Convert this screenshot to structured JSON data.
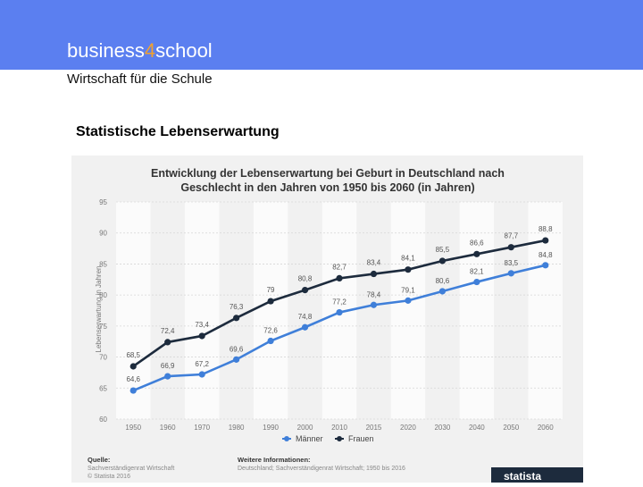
{
  "header": {
    "brand_prefix": "business",
    "brand_digit": "4",
    "brand_suffix": "school",
    "subtitle": "Wirtschaft für die Schule",
    "bg_color": "#5b7ff0",
    "accent_color": "#f2a12e"
  },
  "slide": {
    "title": "Statistische Lebenserwartung"
  },
  "chart_data": {
    "type": "line",
    "title_line1": "Entwicklung der Lebenserwartung bei Geburt in Deutschland nach",
    "title_line2": "Geschlecht in den Jahren von 1950 bis 2060 (in Jahren)",
    "ylabel": "Lebenserwartung in Jahren",
    "xlabel": "",
    "x": [
      1950,
      1960,
      1970,
      1980,
      1990,
      2000,
      2010,
      2015,
      2020,
      2030,
      2040,
      2050,
      2060
    ],
    "ylim": [
      60,
      95
    ],
    "yticks": [
      60,
      65,
      70,
      75,
      80,
      85,
      90,
      95
    ],
    "grid": true,
    "legend_position": "bottom",
    "series": [
      {
        "name": "Männer",
        "color": "#3f7fd9",
        "values": [
          64.6,
          66.9,
          67.2,
          69.6,
          72.6,
          74.8,
          77.2,
          78.4,
          79.1,
          80.6,
          82.1,
          83.5,
          84.8
        ],
        "labels": [
          "64,6",
          "66,9",
          "67,2",
          "69,6",
          "72,6",
          "74,8",
          "77,2",
          "78,4",
          "79,1",
          "80,6",
          "82,1",
          "83,5",
          "84,8"
        ]
      },
      {
        "name": "Frauen",
        "color": "#1d2b3d",
        "values": [
          68.5,
          72.4,
          73.4,
          76.3,
          79,
          80.8,
          82.7,
          83.4,
          84.1,
          85.5,
          86.6,
          87.7,
          88.8
        ],
        "labels": [
          "68,5",
          "72,4",
          "73,4",
          "76,3",
          "79",
          "80,8",
          "82,7",
          "83,4",
          "84,1",
          "85,5",
          "86,6",
          "87,7",
          "88,8"
        ]
      }
    ],
    "source": {
      "heading": "Quelle:",
      "line1": "Sachverständigenrat Wirtschaft",
      "line2": "© Statista 2016",
      "info_heading": "Weitere Informationen:",
      "info_line": "Deutschland; Sachverständigenrat Wirtschaft; 1950 bis 2016",
      "brand": "statista"
    }
  }
}
